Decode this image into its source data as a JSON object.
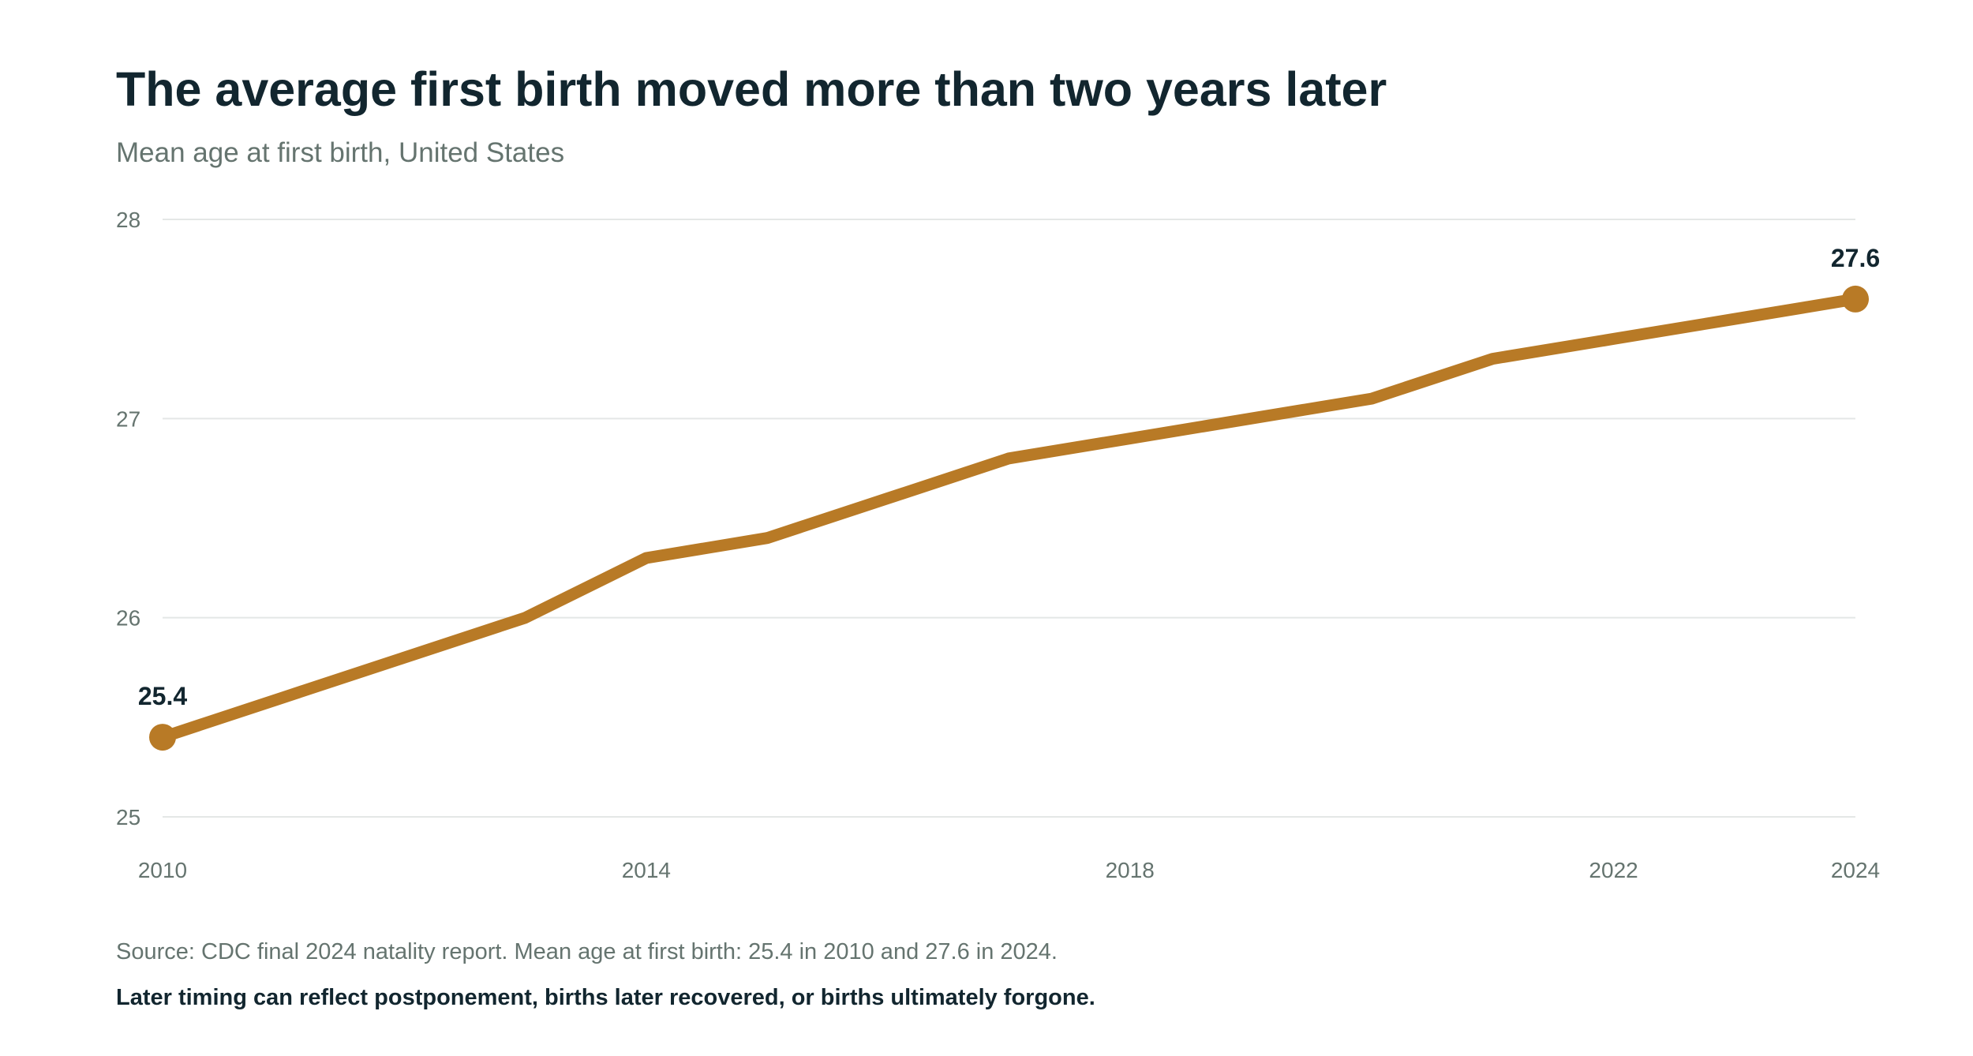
{
  "title": "The average first birth moved more than two years later",
  "subtitle": "Mean age at first birth, United States",
  "source": "Source: CDC final 2024 natality report. Mean age at first birth: 25.4 in 2010 and 27.6 in 2024.",
  "note": "Later timing can reflect postponement, births later recovered, or births ultimately forgone.",
  "colors": {
    "line": "#b87a26",
    "grid": "#e4e7e6",
    "text_dark": "#12262f",
    "text_muted": "#65746f"
  },
  "chart_data": {
    "type": "line",
    "title": "The average first birth moved more than two years later",
    "subtitle": "Mean age at first birth, United States",
    "xlabel": "",
    "ylabel": "",
    "xlim": [
      2010,
      2024
    ],
    "ylim": [
      25,
      28
    ],
    "x_ticks": [
      2010,
      2014,
      2018,
      2022,
      2024
    ],
    "y_ticks": [
      25,
      26,
      27,
      28
    ],
    "grid": "horizontal",
    "legend": "none",
    "series": [
      {
        "x": [
          2010,
          2011,
          2012,
          2013,
          2014,
          2015,
          2016,
          2017,
          2018,
          2019,
          2020,
          2021,
          2022,
          2023,
          2024
        ],
        "values": [
          25.4,
          25.6,
          25.8,
          26.0,
          26.3,
          26.4,
          26.6,
          26.8,
          26.9,
          27.0,
          27.1,
          27.3,
          27.4,
          27.5,
          27.6
        ]
      }
    ],
    "annotations": [
      {
        "x": 2010,
        "y": 25.4,
        "label": "25.4"
      },
      {
        "x": 2024,
        "y": 27.6,
        "label": "27.6"
      }
    ]
  }
}
